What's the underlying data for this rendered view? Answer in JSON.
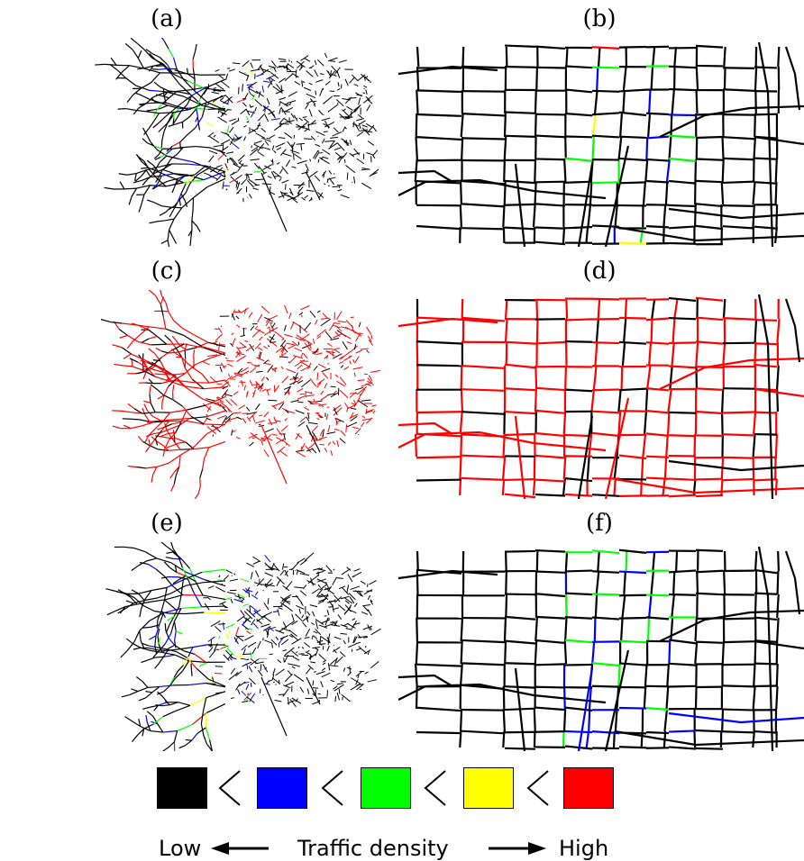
{
  "panels": [
    {
      "label": "(a)",
      "kind": "overview",
      "scheme": "mixed"
    },
    {
      "label": "(b)",
      "kind": "zoom",
      "scheme": "mixed"
    },
    {
      "label": "(c)",
      "kind": "overview",
      "scheme": "red"
    },
    {
      "label": "(d)",
      "kind": "zoom",
      "scheme": "red"
    },
    {
      "label": "(e)",
      "kind": "overview",
      "scheme": "mixed2"
    },
    {
      "label": "(f)",
      "kind": "zoom",
      "scheme": "mixed2"
    }
  ],
  "legend": {
    "levels": [
      {
        "color": "#000000"
      },
      {
        "color": "#0000ff"
      },
      {
        "color": "#00ff00"
      },
      {
        "color": "#ffff00"
      },
      {
        "color": "#ff0000"
      }
    ],
    "separator": "<",
    "low_label": "Low",
    "title": "Traffic density",
    "high_label": "High"
  }
}
